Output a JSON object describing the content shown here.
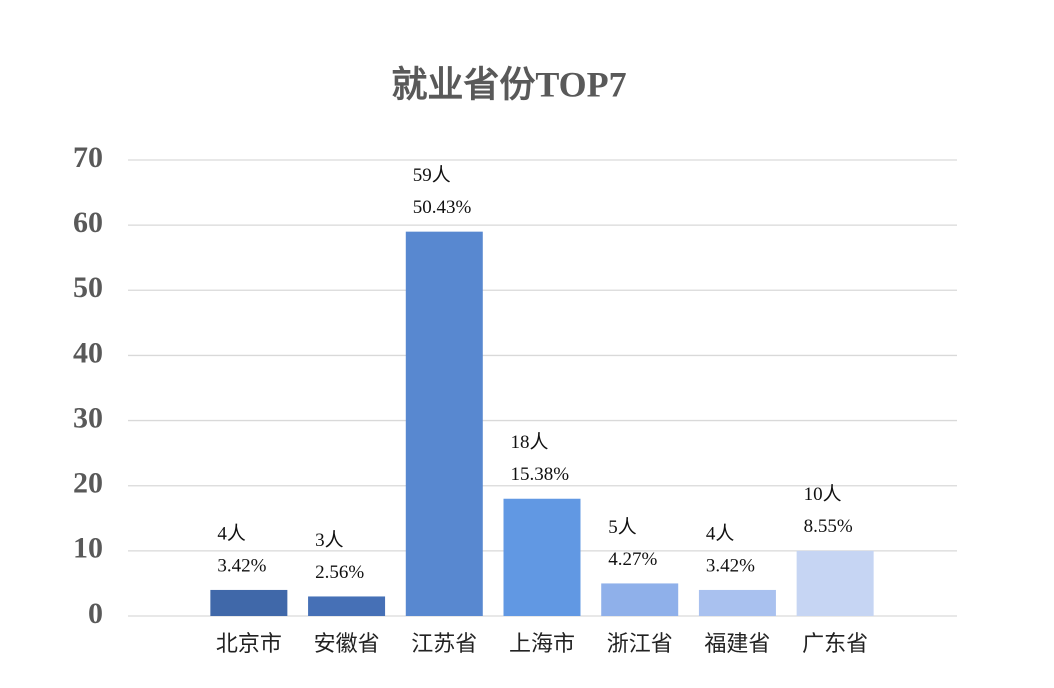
{
  "chart_data": {
    "type": "bar",
    "title": "就业省份TOP7",
    "categories": [
      "北京市",
      "安徽省",
      "江苏省",
      "上海市",
      "浙江省",
      "福建省",
      "广东省"
    ],
    "values": [
      4,
      3,
      59,
      18,
      5,
      4,
      10
    ],
    "value_labels": [
      "4人",
      "3人",
      "59人",
      "18人",
      "5人",
      "4人",
      "10人"
    ],
    "percent_labels": [
      "3.42%",
      "2.56%",
      "50.43%",
      "15.38%",
      "4.27%",
      "3.42%",
      "8.55%"
    ],
    "colors": [
      "#4068a9",
      "#4670b6",
      "#5888d0",
      "#6198e3",
      "#8fb0ea",
      "#a9c1ef",
      "#c6d5f3"
    ],
    "ylim": [
      0,
      70
    ],
    "yticks": [
      0,
      10,
      20,
      30,
      40,
      50,
      60,
      70
    ],
    "grid": true
  }
}
